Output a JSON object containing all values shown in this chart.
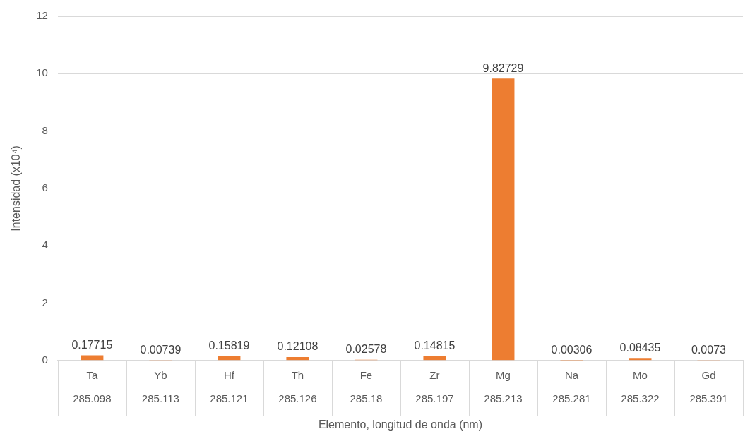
{
  "chart_data": {
    "type": "bar",
    "xlabel": "Elemento, longitud de onda (nm)",
    "ylabel": "Intensidad (x10⁴)",
    "categories": [
      "Ta\n285.098",
      "Yb\n285.113",
      "Hf\n285.121",
      "Th\n285.126",
      "Fe\n285.18",
      "Zr\n285.197",
      "Mg\n285.213",
      "Na\n285.281",
      "Mo\n285.322",
      "Gd\n285.391"
    ],
    "values": [
      0.17715,
      0.00739,
      0.15819,
      0.12108,
      0.02578,
      0.14815,
      9.82729,
      0.00306,
      0.08435,
      0.0073
    ],
    "color": "#ed7d31",
    "ylim": [
      0,
      12
    ],
    "yticks": [
      0,
      2,
      4,
      6,
      8,
      10,
      12
    ],
    "grid": "y",
    "legend": false,
    "data_labels": true
  }
}
